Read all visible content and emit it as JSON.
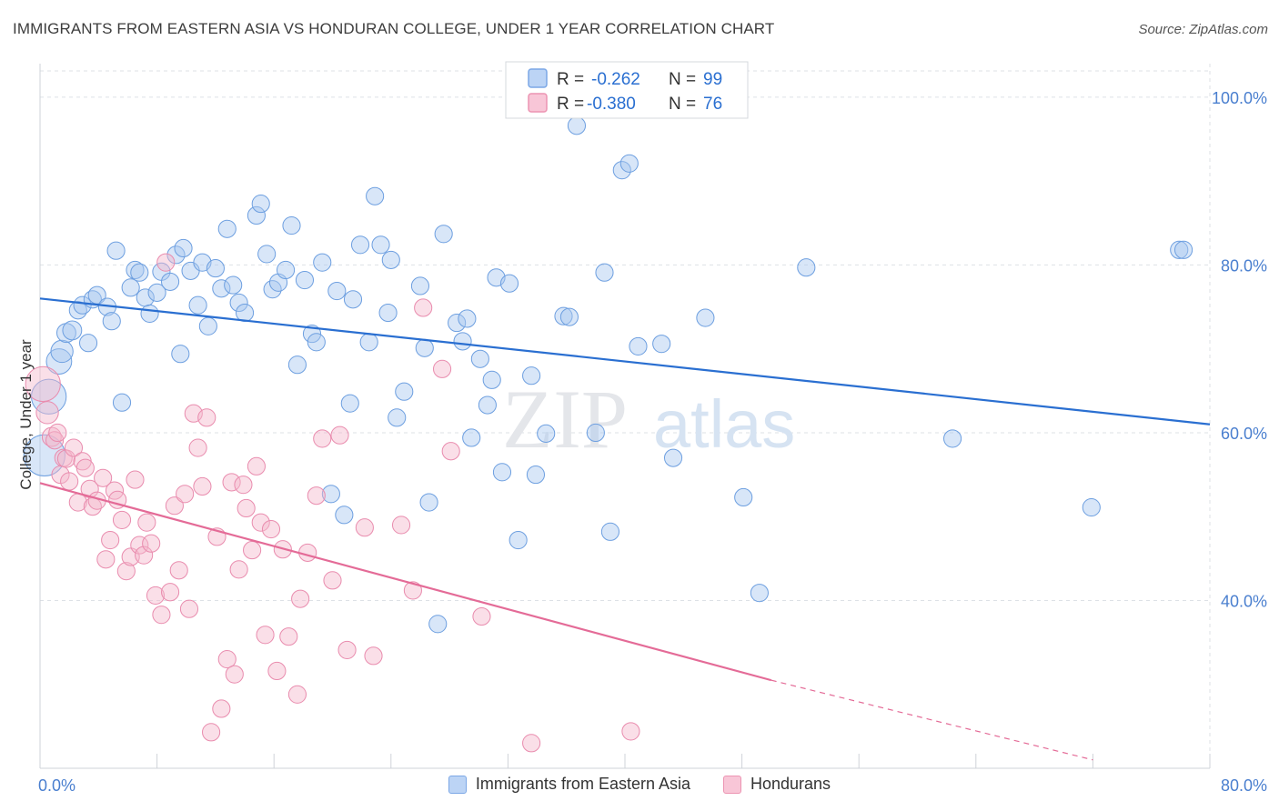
{
  "title": "IMMIGRANTS FROM EASTERN ASIA VS HONDURAN COLLEGE, UNDER 1 YEAR CORRELATION CHART",
  "source": "Source: ZipAtlas.com",
  "watermark": {
    "zip": "ZIP",
    "atlas": "atlas"
  },
  "colors": {
    "blue_fill": "#a9c7ef",
    "blue_stroke": "#6d9fe0",
    "blue_line": "#2a6fd1",
    "pink_fill": "#f5b8cc",
    "pink_stroke": "#e98cae",
    "pink_line": "#e46b97",
    "axis_label": "#4a7fcf",
    "grid": "#dde1e6"
  },
  "chart_data": {
    "type": "scatter",
    "xlabel": "",
    "ylabel": "College, Under 1 year",
    "xlim": [
      0,
      80
    ],
    "ylim": [
      20,
      104
    ],
    "x_tick_labels": [
      "0.0%",
      "80.0%"
    ],
    "y_ticks": [
      40,
      60,
      80,
      100
    ],
    "y_tick_labels": [
      "40.0%",
      "60.0%",
      "80.0%",
      "100.0%"
    ],
    "grid": true,
    "legend": [
      {
        "r_label": "R =",
        "r_value": "-0.262",
        "n_label": "N =",
        "n_value": "99"
      },
      {
        "r_label": "R =",
        "r_value": "-0.380",
        "n_label": "N =",
        "n_value": "76"
      }
    ],
    "series": [
      {
        "name": "Immigrants from Eastern Asia",
        "trend": {
          "x": [
            0,
            80
          ],
          "y": [
            76.0,
            61.0
          ]
        },
        "points": [
          [
            0.3,
            57.3
          ],
          [
            0.6,
            64.3
          ],
          [
            1.3,
            68.5
          ],
          [
            1.5,
            69.7
          ],
          [
            1.8,
            71.9
          ],
          [
            2.2,
            72.2
          ],
          [
            2.6,
            74.6
          ],
          [
            2.9,
            75.2
          ],
          [
            3.3,
            70.7
          ],
          [
            3.6,
            75.9
          ],
          [
            3.9,
            76.4
          ],
          [
            4.6,
            75.0
          ],
          [
            4.9,
            73.3
          ],
          [
            5.2,
            81.7
          ],
          [
            5.6,
            63.6
          ],
          [
            6.2,
            77.3
          ],
          [
            6.5,
            79.4
          ],
          [
            6.8,
            79.1
          ],
          [
            7.2,
            76.1
          ],
          [
            7.5,
            74.2
          ],
          [
            8.0,
            76.7
          ],
          [
            8.3,
            79.2
          ],
          [
            8.9,
            78.0
          ],
          [
            9.3,
            81.2
          ],
          [
            9.6,
            69.4
          ],
          [
            9.8,
            82.0
          ],
          [
            10.3,
            79.3
          ],
          [
            10.8,
            75.2
          ],
          [
            11.1,
            80.3
          ],
          [
            11.5,
            72.7
          ],
          [
            12.0,
            79.6
          ],
          [
            12.4,
            77.2
          ],
          [
            12.8,
            84.3
          ],
          [
            13.2,
            77.6
          ],
          [
            13.6,
            75.5
          ],
          [
            14.0,
            74.3
          ],
          [
            14.8,
            85.9
          ],
          [
            15.1,
            87.3
          ],
          [
            15.5,
            81.3
          ],
          [
            15.9,
            77.1
          ],
          [
            16.3,
            77.9
          ],
          [
            16.8,
            79.4
          ],
          [
            17.2,
            84.7
          ],
          [
            17.6,
            68.1
          ],
          [
            18.1,
            78.2
          ],
          [
            18.6,
            71.8
          ],
          [
            18.9,
            70.8
          ],
          [
            19.3,
            80.3
          ],
          [
            19.9,
            52.7
          ],
          [
            20.3,
            76.9
          ],
          [
            20.8,
            50.2
          ],
          [
            21.2,
            63.5
          ],
          [
            21.4,
            75.9
          ],
          [
            21.9,
            82.4
          ],
          [
            22.5,
            70.8
          ],
          [
            22.9,
            88.2
          ],
          [
            23.3,
            82.4
          ],
          [
            23.8,
            74.3
          ],
          [
            24.0,
            80.6
          ],
          [
            24.4,
            61.8
          ],
          [
            24.9,
            64.9
          ],
          [
            26.0,
            77.5
          ],
          [
            26.3,
            70.1
          ],
          [
            26.6,
            51.7
          ],
          [
            27.2,
            37.2
          ],
          [
            27.6,
            83.7
          ],
          [
            28.5,
            73.1
          ],
          [
            28.9,
            70.9
          ],
          [
            29.2,
            73.6
          ],
          [
            29.5,
            59.4
          ],
          [
            30.1,
            68.8
          ],
          [
            30.6,
            63.3
          ],
          [
            30.9,
            66.3
          ],
          [
            31.2,
            78.5
          ],
          [
            31.6,
            55.3
          ],
          [
            32.1,
            77.8
          ],
          [
            32.7,
            47.2
          ],
          [
            33.6,
            66.8
          ],
          [
            33.9,
            55.0
          ],
          [
            34.6,
            59.9
          ],
          [
            35.8,
            73.9
          ],
          [
            36.2,
            73.8
          ],
          [
            36.7,
            96.6
          ],
          [
            38.0,
            60.0
          ],
          [
            38.6,
            79.1
          ],
          [
            39.0,
            48.2
          ],
          [
            39.8,
            91.3
          ],
          [
            40.3,
            92.1
          ],
          [
            40.9,
            70.3
          ],
          [
            42.5,
            70.6
          ],
          [
            43.3,
            57.0
          ],
          [
            45.5,
            73.7
          ],
          [
            48.1,
            52.3
          ],
          [
            49.2,
            40.9
          ],
          [
            52.4,
            79.7
          ],
          [
            62.4,
            59.3
          ],
          [
            71.9,
            51.1
          ],
          [
            77.9,
            81.8
          ],
          [
            78.2,
            81.8
          ]
        ],
        "sizes": [
          26,
          22,
          16,
          14,
          12,
          12,
          11,
          11,
          11,
          11,
          11,
          11,
          11,
          11,
          11,
          11,
          11,
          11,
          11,
          11,
          11,
          11,
          11,
          11,
          11,
          11,
          11,
          11,
          11,
          11,
          11,
          11,
          11,
          11,
          11,
          11,
          11,
          11,
          11,
          11,
          11,
          11,
          11,
          11,
          11,
          11,
          11,
          11,
          11,
          11,
          11,
          11,
          11,
          11,
          11,
          11,
          11,
          11,
          11,
          11,
          11,
          11,
          11,
          11,
          11,
          11,
          11,
          11,
          11,
          11,
          11,
          11,
          11,
          11,
          11,
          11,
          11,
          11,
          11,
          11,
          11,
          11,
          11,
          11,
          11,
          11,
          11,
          11,
          11,
          11,
          11,
          11,
          11,
          11,
          11,
          11,
          11,
          11,
          11
        ]
      },
      {
        "name": "Hondurans",
        "trend": {
          "x": [
            0,
            50
          ],
          "y": [
            54.0,
            30.5
          ]
        },
        "trend_dashed": {
          "x": [
            50,
            72
          ],
          "y": [
            30.5,
            21.0
          ]
        },
        "points": [
          [
            0.2,
            65.8
          ],
          [
            0.5,
            62.4
          ],
          [
            0.8,
            59.5
          ],
          [
            1.0,
            59.1
          ],
          [
            1.2,
            60.0
          ],
          [
            1.4,
            55.0
          ],
          [
            1.6,
            57.0
          ],
          [
            1.8,
            56.9
          ],
          [
            2.0,
            54.2
          ],
          [
            2.3,
            58.2
          ],
          [
            2.6,
            51.7
          ],
          [
            2.9,
            56.6
          ],
          [
            3.1,
            55.8
          ],
          [
            3.4,
            53.3
          ],
          [
            3.6,
            51.2
          ],
          [
            3.9,
            51.9
          ],
          [
            4.3,
            54.6
          ],
          [
            4.5,
            44.9
          ],
          [
            4.8,
            47.2
          ],
          [
            5.1,
            53.1
          ],
          [
            5.3,
            52.0
          ],
          [
            5.6,
            49.6
          ],
          [
            5.9,
            43.5
          ],
          [
            6.2,
            45.2
          ],
          [
            6.5,
            54.4
          ],
          [
            6.8,
            46.6
          ],
          [
            7.1,
            45.4
          ],
          [
            7.3,
            49.3
          ],
          [
            7.6,
            46.8
          ],
          [
            7.9,
            40.6
          ],
          [
            8.3,
            38.3
          ],
          [
            8.6,
            80.3
          ],
          [
            8.9,
            41.0
          ],
          [
            9.2,
            51.3
          ],
          [
            9.5,
            43.6
          ],
          [
            9.9,
            52.7
          ],
          [
            10.2,
            39.0
          ],
          [
            10.5,
            62.3
          ],
          [
            10.8,
            58.2
          ],
          [
            11.1,
            53.6
          ],
          [
            11.4,
            61.8
          ],
          [
            11.7,
            24.3
          ],
          [
            12.1,
            47.6
          ],
          [
            12.4,
            27.1
          ],
          [
            12.8,
            33.0
          ],
          [
            13.1,
            54.1
          ],
          [
            13.3,
            31.2
          ],
          [
            13.6,
            43.7
          ],
          [
            13.9,
            53.8
          ],
          [
            14.1,
            51.0
          ],
          [
            14.5,
            46.0
          ],
          [
            14.8,
            56.0
          ],
          [
            15.1,
            49.3
          ],
          [
            15.4,
            35.9
          ],
          [
            15.8,
            48.5
          ],
          [
            16.2,
            31.6
          ],
          [
            16.6,
            46.1
          ],
          [
            17.0,
            35.7
          ],
          [
            17.6,
            28.8
          ],
          [
            17.8,
            40.2
          ],
          [
            18.3,
            45.7
          ],
          [
            18.9,
            52.5
          ],
          [
            19.3,
            59.3
          ],
          [
            20.0,
            42.4
          ],
          [
            20.5,
            59.7
          ],
          [
            21.0,
            34.1
          ],
          [
            22.2,
            48.7
          ],
          [
            22.8,
            33.4
          ],
          [
            24.7,
            49.0
          ],
          [
            25.5,
            41.2
          ],
          [
            26.2,
            74.9
          ],
          [
            27.5,
            67.6
          ],
          [
            28.1,
            57.8
          ],
          [
            30.2,
            38.1
          ],
          [
            33.6,
            23.0
          ],
          [
            40.4,
            24.4
          ]
        ],
        "sizes": [
          22,
          14,
          12,
          11,
          11,
          11,
          11,
          11,
          11,
          11,
          11,
          11,
          11,
          11,
          11,
          11,
          11,
          11,
          11,
          11,
          11,
          11,
          11,
          11,
          11,
          11,
          11,
          11,
          11,
          11,
          11,
          11,
          11,
          11,
          11,
          11,
          11,
          11,
          11,
          11,
          11,
          11,
          11,
          11,
          11,
          11,
          11,
          11,
          11,
          11,
          11,
          11,
          11,
          11,
          11,
          11,
          11,
          11,
          11,
          11,
          11,
          11,
          11,
          11,
          11,
          11,
          11,
          11,
          11,
          11,
          11,
          11,
          11,
          11,
          11,
          11
        ]
      }
    ]
  }
}
